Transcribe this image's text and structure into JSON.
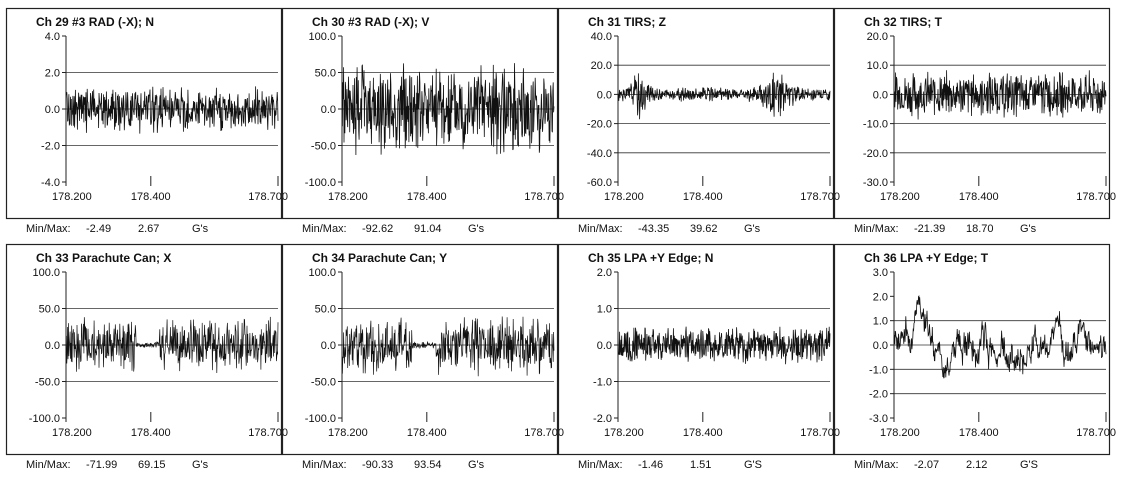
{
  "x_axis": {
    "min": 178.2,
    "max": 178.7,
    "ticks": [
      "178.200",
      "178.400",
      "178.700"
    ],
    "tick_values": [
      178.2,
      178.4,
      178.7
    ]
  },
  "minmax_label": "Min/Max:",
  "colors": {
    "trace": "#111111",
    "grid": "#333333",
    "frame": "#222222",
    "background": "#ffffff"
  },
  "chart_data": [
    {
      "type": "line",
      "title": "Ch 29  #3 RAD (-X); N",
      "yticks": [
        "4.0",
        "2.0",
        "0.0",
        "-2.0",
        "-4.0"
      ],
      "ytick_values": [
        4,
        2,
        0,
        -2,
        -4
      ],
      "ylim": [
        -4,
        4
      ],
      "grid_values": [
        2,
        0,
        -2
      ],
      "min": "-2.49",
      "max": "2.67",
      "unit": "G's",
      "amp": 1.1,
      "seed": 29,
      "style": "sparse"
    },
    {
      "type": "line",
      "title": "Ch 30  #3 RAD (-X); V",
      "yticks": [
        "100.0",
        "50.0",
        "0.0",
        "-50.0",
        "-100.0"
      ],
      "ytick_values": [
        100,
        50,
        0,
        -50,
        -100
      ],
      "ylim": [
        -100,
        100
      ],
      "grid_values": [
        50,
        0,
        -50
      ],
      "min": "-92.62",
      "max": "91.04",
      "unit": "G's",
      "amp": 55,
      "seed": 30,
      "style": "sparse"
    },
    {
      "type": "line",
      "title": "Ch 31  TIRS; Z",
      "yticks": [
        "40.0",
        "20.0",
        "0.0",
        "-20.0",
        "-40.0",
        "-60.0"
      ],
      "ytick_values": [
        40,
        20,
        0,
        -20,
        -40,
        -60
      ],
      "ylim": [
        -60,
        40
      ],
      "grid_values": [
        20,
        0,
        -20,
        -40
      ],
      "min": "-43.35",
      "max": "39.62",
      "unit": "G's",
      "amp": 12,
      "seed": 31,
      "style": "bursts"
    },
    {
      "type": "line",
      "title": "Ch 32  TIRS; T",
      "yticks": [
        "20.0",
        "10.0",
        "0.0",
        "-10.0",
        "-20.0",
        "-30.0"
      ],
      "ytick_values": [
        20,
        10,
        0,
        -10,
        -20,
        -30
      ],
      "ylim": [
        -30,
        20
      ],
      "grid_values": [
        10,
        0,
        -10,
        -20
      ],
      "min": "-21.39",
      "max": "18.70",
      "unit": "G's",
      "amp": 7,
      "seed": 32,
      "style": "sparse"
    },
    {
      "type": "line",
      "title": "Ch 33  Parachute Can; X",
      "yticks": [
        "100.0",
        "50.0",
        "0.0",
        "-50.0",
        "-100.0"
      ],
      "ytick_values": [
        100,
        50,
        0,
        -50,
        -100
      ],
      "ylim": [
        -100,
        100
      ],
      "grid_values": [
        50,
        0,
        -50
      ],
      "min": "-71.99",
      "max": "69.15",
      "unit": "G's",
      "amp": 32,
      "seed": 33,
      "style": "dense"
    },
    {
      "type": "line",
      "title": "Ch 34  Parachute Can; Y",
      "yticks": [
        "100.0",
        "50.0",
        "0.0",
        "-50.0",
        "-100.0"
      ],
      "ytick_values": [
        100,
        50,
        0,
        -50,
        -100
      ],
      "ylim": [
        -100,
        100
      ],
      "grid_values": [
        50,
        0,
        -50
      ],
      "min": "-90.33",
      "max": "93.54",
      "unit": "G's",
      "amp": 35,
      "seed": 34,
      "style": "dense"
    },
    {
      "type": "line",
      "title": "Ch 35  LPA +Y Edge; N",
      "yticks": [
        "2.0",
        "1.0",
        "0.0",
        "-1.0",
        "-2.0"
      ],
      "ytick_values": [
        2,
        1,
        0,
        -1,
        -2
      ],
      "ylim": [
        -2,
        2
      ],
      "grid_values": [
        1,
        0,
        -1
      ],
      "min": "-1.46",
      "max": "1.51",
      "unit": "G'S",
      "amp": 0.45,
      "seed": 35,
      "style": "sparse"
    },
    {
      "type": "line",
      "title": "Ch 36  LPA +Y Edge; T",
      "yticks": [
        "3.0",
        "2.0",
        "1.0",
        "0.0",
        "-1.0",
        "-2.0",
        "-3.0"
      ],
      "ytick_values": [
        3,
        2,
        1,
        0,
        -1,
        -2,
        -3
      ],
      "ylim": [
        -3,
        3
      ],
      "grid_values": [
        1,
        0,
        -1,
        -2
      ],
      "min": "-2.07",
      "max": "2.12",
      "unit": "G'S",
      "amp": 0.5,
      "seed": 36,
      "style": "smooth"
    }
  ]
}
